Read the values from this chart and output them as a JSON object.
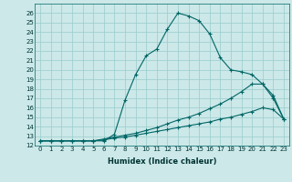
{
  "xlabel": "Humidex (Indice chaleur)",
  "background_color": "#cce8e8",
  "grid_color": "#99cccc",
  "line_color": "#006666",
  "xlim": [
    -0.5,
    23.5
  ],
  "ylim": [
    12,
    27
  ],
  "xticks": [
    0,
    1,
    2,
    3,
    4,
    5,
    6,
    7,
    8,
    9,
    10,
    11,
    12,
    13,
    14,
    15,
    16,
    17,
    18,
    19,
    20,
    21,
    22,
    23
  ],
  "yticks": [
    12,
    13,
    14,
    15,
    16,
    17,
    18,
    19,
    20,
    21,
    22,
    23,
    24,
    25,
    26
  ],
  "curve1_x": [
    0,
    1,
    2,
    3,
    4,
    5,
    6,
    7,
    8,
    9,
    10,
    11,
    12,
    13,
    14,
    15,
    16,
    17,
    18,
    19,
    20,
    21,
    22,
    23
  ],
  "curve1_y": [
    12.5,
    12.5,
    12.5,
    12.5,
    12.5,
    12.5,
    12.5,
    13.2,
    16.8,
    19.5,
    21.5,
    22.2,
    24.3,
    26.0,
    25.7,
    25.2,
    23.8,
    21.3,
    20.0,
    19.8,
    19.5,
    18.5,
    17.3,
    14.8
  ],
  "curve2_x": [
    0,
    1,
    2,
    3,
    4,
    5,
    6,
    7,
    8,
    9,
    10,
    11,
    12,
    13,
    14,
    15,
    16,
    17,
    18,
    19,
    20,
    21,
    22,
    23
  ],
  "curve2_y": [
    12.5,
    12.5,
    12.5,
    12.5,
    12.5,
    12.5,
    12.7,
    12.9,
    13.1,
    13.3,
    13.6,
    13.9,
    14.3,
    14.7,
    15.0,
    15.4,
    15.9,
    16.4,
    17.0,
    17.7,
    18.5,
    18.5,
    17.0,
    14.8
  ],
  "curve3_x": [
    0,
    1,
    2,
    3,
    4,
    5,
    6,
    7,
    8,
    9,
    10,
    11,
    12,
    13,
    14,
    15,
    16,
    17,
    18,
    19,
    20,
    21,
    22,
    23
  ],
  "curve3_y": [
    12.5,
    12.5,
    12.5,
    12.5,
    12.5,
    12.5,
    12.6,
    12.8,
    12.9,
    13.1,
    13.3,
    13.5,
    13.7,
    13.9,
    14.1,
    14.3,
    14.5,
    14.8,
    15.0,
    15.3,
    15.6,
    16.0,
    15.8,
    14.8
  ],
  "tick_fontsize": 5.0,
  "xlabel_fontsize": 6.0
}
